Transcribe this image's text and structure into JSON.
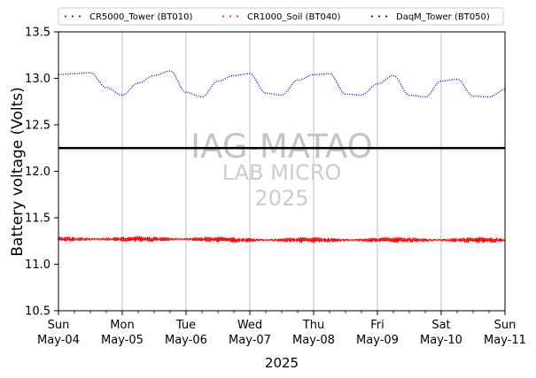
{
  "chart_data": {
    "type": "line",
    "title": "",
    "xlabel": "2025",
    "ylabel": "Battery voltage (Volts)",
    "xlim": [
      "2025-05-04",
      "2025-05-11"
    ],
    "ylim": [
      10.5,
      13.5
    ],
    "grid": "vertical at major ticks",
    "legend_position": "top, above plot",
    "y_ticks": [
      "10.5",
      "11.0",
      "11.5",
      "12.0",
      "12.5",
      "13.0",
      "13.5"
    ],
    "x_ticks": [
      {
        "day": "Sun",
        "date": "May-04"
      },
      {
        "day": "Mon",
        "date": "May-05"
      },
      {
        "day": "Tue",
        "date": "May-06"
      },
      {
        "day": "Wed",
        "date": "May-07"
      },
      {
        "day": "Thu",
        "date": "May-08"
      },
      {
        "day": "Fri",
        "date": "May-09"
      },
      {
        "day": "Sat",
        "date": "May-10"
      },
      {
        "day": "Sun",
        "date": "May-11"
      }
    ],
    "watermark": [
      "IAG-MATAO",
      "LAB MICRO",
      "2025"
    ],
    "series": [
      {
        "name": "CR5000_Tower (BT010)",
        "color": "#0000ff",
        "style": "dotted",
        "x": [
          "2025-05-04 00:00",
          "2025-05-04 06:00",
          "2025-05-04 12:00",
          "2025-05-04 18:00",
          "2025-05-05 00:00",
          "2025-05-05 06:00",
          "2025-05-05 12:00",
          "2025-05-05 18:00",
          "2025-05-06 00:00",
          "2025-05-06 06:00",
          "2025-05-06 12:00",
          "2025-05-06 18:00",
          "2025-05-07 00:00",
          "2025-05-07 06:00",
          "2025-05-07 12:00",
          "2025-05-07 18:00",
          "2025-05-08 00:00",
          "2025-05-08 06:00",
          "2025-05-08 12:00",
          "2025-05-08 18:00",
          "2025-05-09 00:00",
          "2025-05-09 06:00",
          "2025-05-09 12:00",
          "2025-05-09 18:00",
          "2025-05-10 00:00",
          "2025-05-10 06:00",
          "2025-05-10 12:00",
          "2025-05-10 18:00",
          "2025-05-11 00:00"
        ],
        "values": [
          13.04,
          13.05,
          13.06,
          12.9,
          12.82,
          12.95,
          13.03,
          13.08,
          12.85,
          12.8,
          12.97,
          13.03,
          13.05,
          12.84,
          12.82,
          12.98,
          13.04,
          13.05,
          12.83,
          12.82,
          12.94,
          13.03,
          12.82,
          12.8,
          12.97,
          12.99,
          12.81,
          12.8,
          12.88
        ]
      },
      {
        "name": "CR1000_Soil (BT040)",
        "color": "#ff0000",
        "style": "dotted",
        "x": [
          "2025-05-04",
          "2025-05-05",
          "2025-05-06",
          "2025-05-07",
          "2025-05-08",
          "2025-05-09",
          "2025-05-10",
          "2025-05-11"
        ],
        "values": [
          11.27,
          11.27,
          11.27,
          11.26,
          11.26,
          11.26,
          11.26,
          11.26
        ]
      },
      {
        "name": "DaqM_Tower (BT050)",
        "color": "#000000",
        "style": "dotted",
        "x": [
          "2025-05-04",
          "2025-05-11"
        ],
        "values": [
          12.25,
          12.25
        ]
      }
    ]
  }
}
